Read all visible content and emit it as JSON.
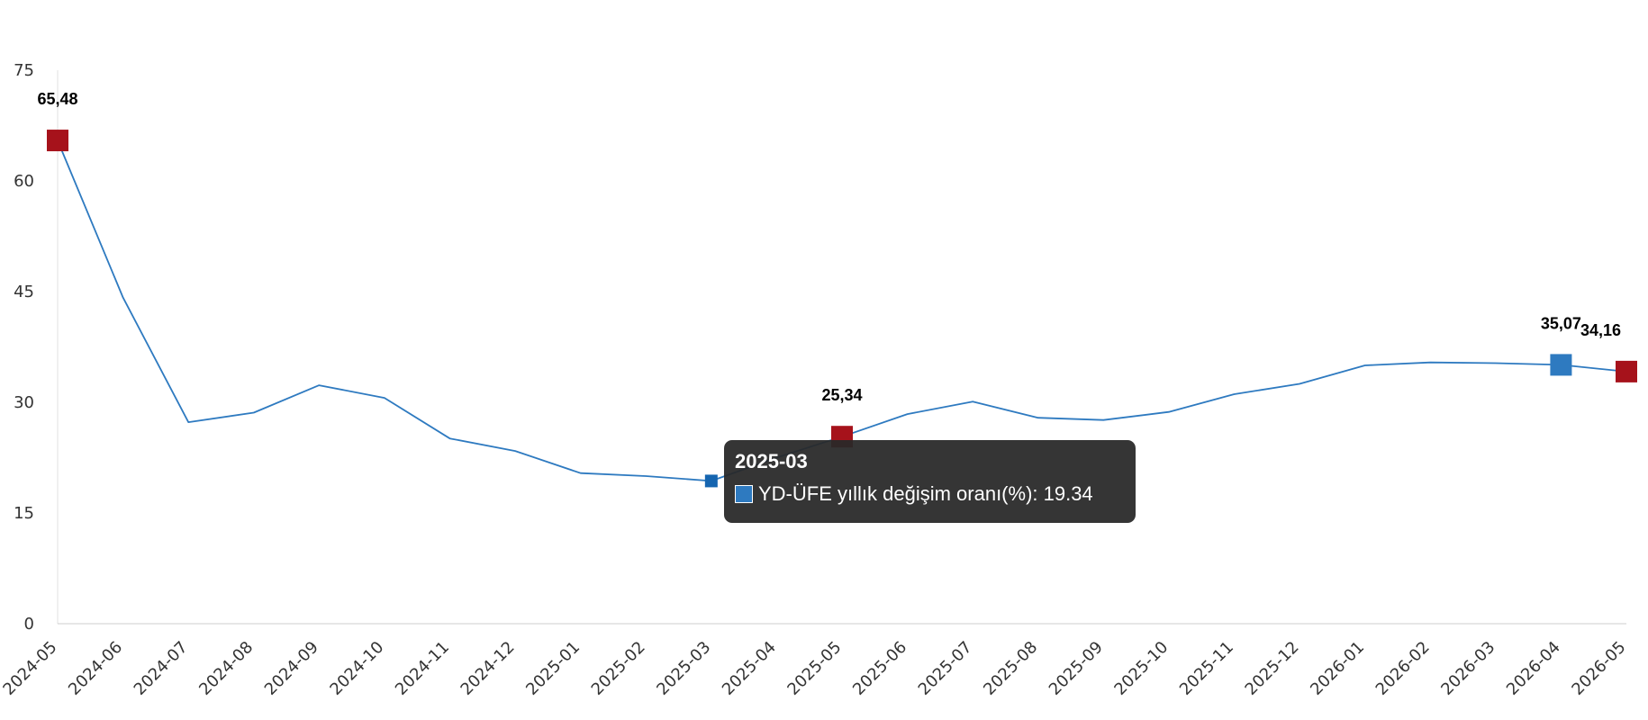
{
  "chart_data": {
    "type": "line",
    "x": [
      "2024-05",
      "2024-06",
      "2024-07",
      "2024-08",
      "2024-09",
      "2024-10",
      "2024-11",
      "2024-12",
      "2025-01",
      "2025-02",
      "2025-03",
      "2025-04",
      "2025-05",
      "2025-06",
      "2025-07",
      "2025-08",
      "2025-09",
      "2025-10",
      "2025-11",
      "2025-12",
      "2026-01",
      "2026-02",
      "2026-03",
      "2026-04",
      "2026-05"
    ],
    "series": [
      {
        "name": "YD-ÜFE yıllık değişim oranı(%)",
        "color": "#2e7ac0",
        "values": [
          65.48,
          44.2,
          27.3,
          28.6,
          32.3,
          30.6,
          25.1,
          23.4,
          20.4,
          20.0,
          19.34,
          22.5,
          25.34,
          28.4,
          30.1,
          27.9,
          27.6,
          28.7,
          31.1,
          32.5,
          35.0,
          35.4,
          35.3,
          35.07,
          34.16
        ]
      }
    ],
    "ylim": [
      0,
      75
    ],
    "yticks": [
      0,
      15,
      30,
      45,
      60,
      75
    ],
    "grid": false,
    "line_color": "#2e7ac0",
    "highlight_points": [
      {
        "x": "2024-05",
        "label": "65,48",
        "color": "#a6121b"
      },
      {
        "x": "2025-05",
        "label": "25,34",
        "color": "#a6121b"
      },
      {
        "x": "2026-04",
        "label": "35,07",
        "color": "#2e7ac0"
      },
      {
        "x": "2026-05",
        "label": "34,16",
        "color": "#a6121b"
      }
    ]
  },
  "tooltip": {
    "title": "2025-03",
    "text": "YD-ÜFE yıllık değişim oranı(%): 19.34",
    "x": "2025-03"
  }
}
